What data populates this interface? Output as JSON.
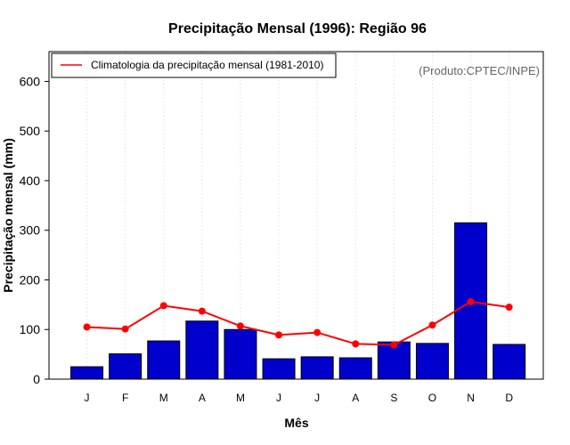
{
  "chart_data": {
    "type": "bar",
    "title": "Precipitação Mensal (1996): Região 96",
    "xlabel": "Mês",
    "ylabel": "Precipitação mensal (mm)",
    "categories": [
      "J",
      "F",
      "M",
      "A",
      "M",
      "J",
      "J",
      "A",
      "S",
      "O",
      "N",
      "D"
    ],
    "ylim": [
      0,
      660
    ],
    "yticks": [
      0,
      100,
      200,
      300,
      400,
      500,
      600
    ],
    "grid": "vertical dotted",
    "series": [
      {
        "name": "Precipitação mensal (1996)",
        "type": "bar",
        "color": "#0000cd",
        "values": [
          25,
          51,
          77,
          117,
          100,
          41,
          45,
          43,
          75,
          72,
          315,
          70
        ]
      },
      {
        "name": "Climatologia da precipitação mensal (1981-2010)",
        "type": "line",
        "color": "#ff0000",
        "values": [
          105,
          101,
          148,
          137,
          107,
          89,
          94,
          71,
          69,
          109,
          156,
          145
        ]
      }
    ],
    "legend": {
      "position": "top-left",
      "entries": [
        "Climatologia da precipitação mensal (1981-2010)"
      ]
    },
    "annotation": "(Produto:CPTEC/INPE)"
  }
}
